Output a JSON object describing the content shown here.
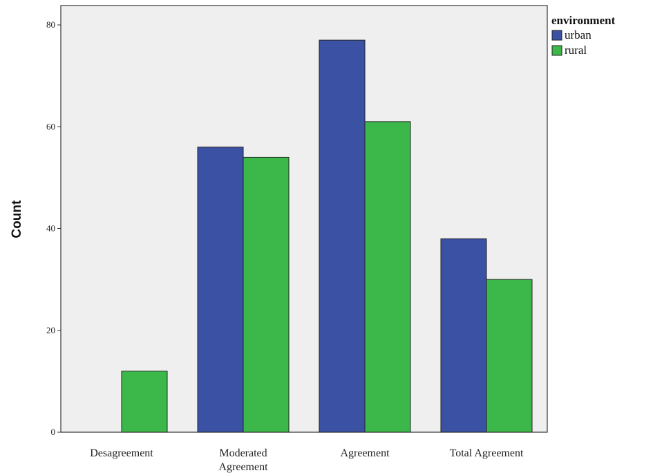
{
  "chart_data": {
    "type": "bar",
    "title": "",
    "xlabel": "",
    "ylabel": "Count",
    "ylim": [
      0,
      80
    ],
    "yticks": [
      0,
      20,
      40,
      60,
      80
    ],
    "grid": false,
    "legend": {
      "title": "environment",
      "placement": "top-right"
    },
    "categories": [
      "Desagreement",
      "Moderated Agreement",
      "Agreement",
      "Total Agreement"
    ],
    "series": [
      {
        "name": "urban",
        "color": "#3b52a4",
        "values": [
          0,
          56,
          77,
          38
        ]
      },
      {
        "name": "rural",
        "color": "#3cb84a",
        "values": [
          12,
          54,
          61,
          30
        ]
      }
    ]
  }
}
